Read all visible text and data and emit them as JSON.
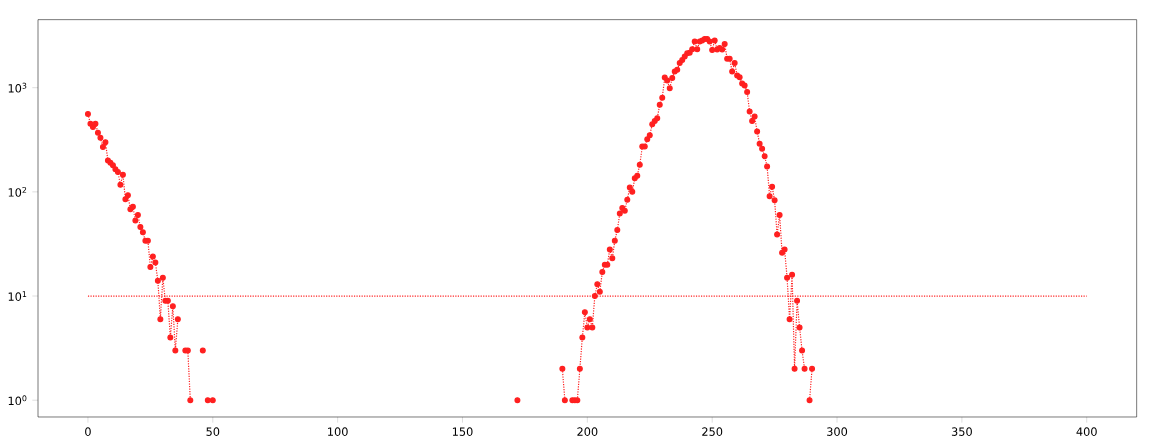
{
  "chart_data": {
    "type": "line",
    "log": "y",
    "xlim": [
      -20,
      420
    ],
    "ylim": [
      0.69,
      4500
    ],
    "xticks": [
      0,
      50,
      100,
      150,
      200,
      250,
      300,
      350,
      400
    ],
    "yticks": [
      {
        "value": 1,
        "label": "10$^{0}$"
      },
      {
        "value": 10,
        "label": "10$^{1}$"
      },
      {
        "value": 100,
        "label": "10$^{2}$"
      },
      {
        "value": 1000,
        "label": "10$^{3}$"
      }
    ],
    "series": [
      {
        "color": "#ff2020",
        "marker": "circle",
        "line_style": "dotted",
        "x": [
          0,
          1,
          2,
          3,
          4,
          5,
          6,
          7,
          8,
          9,
          10,
          11,
          12,
          13,
          14,
          15,
          16,
          17,
          18,
          19,
          20,
          21,
          22,
          23,
          24,
          25,
          26,
          27,
          28,
          29,
          30,
          31,
          32,
          33,
          34,
          35,
          36,
          37,
          38,
          39,
          40,
          41,
          42,
          45,
          46,
          47,
          48,
          49,
          50,
          51,
          171,
          172,
          173,
          189,
          190,
          191,
          192,
          193,
          194,
          195,
          196,
          197,
          198,
          199,
          200,
          201,
          202,
          203,
          204,
          205,
          206,
          207,
          208,
          209,
          210,
          211,
          212,
          213,
          214,
          215,
          216,
          217,
          218,
          219,
          220,
          221,
          222,
          223,
          224,
          225,
          226,
          227,
          228,
          229,
          230,
          231,
          232,
          233,
          234,
          235,
          236,
          237,
          238,
          239,
          240,
          241,
          242,
          243,
          244,
          245,
          246,
          247,
          248,
          249,
          250,
          251,
          252,
          253,
          254,
          255,
          256,
          257,
          258,
          259,
          260,
          261,
          262,
          263,
          264,
          265,
          266,
          267,
          268,
          269,
          270,
          271,
          272,
          273,
          274,
          275,
          276,
          277,
          278,
          279,
          280,
          281,
          282,
          283,
          284,
          285,
          286,
          287,
          288,
          289,
          290
        ],
        "values": [
          560,
          450,
          420,
          450,
          370,
          330,
          270,
          300,
          200,
          190,
          180,
          165,
          155,
          117,
          146,
          85,
          93,
          68,
          72,
          53,
          60,
          46,
          41,
          34,
          34,
          19,
          24,
          21,
          14,
          6,
          15,
          9,
          9,
          4,
          8,
          3,
          6,
          null,
          null,
          3,
          3,
          1,
          null,
          null,
          3,
          null,
          1,
          null,
          1,
          null,
          null,
          1,
          null,
          null,
          2,
          1,
          null,
          null,
          1,
          1,
          1,
          2,
          4,
          7,
          5,
          6,
          5,
          10,
          13,
          11,
          17,
          20,
          20,
          28,
          23,
          34,
          43,
          62,
          70,
          66,
          84,
          110,
          100,
          135,
          143,
          182,
          272,
          272,
          320,
          350,
          445,
          480,
          510,
          685,
          800,
          1250,
          1170,
          990,
          1240,
          1430,
          1490,
          1730,
          1840,
          1990,
          2140,
          2170,
          2340,
          2780,
          2340,
          2780,
          2840,
          2940,
          2940,
          2780,
          2300,
          2840,
          2330,
          2400,
          2330,
          2620,
          1900,
          1900,
          1430,
          1730,
          1310,
          1260,
          1100,
          1050,
          910,
          590,
          480,
          530,
          380,
          290,
          260,
          220,
          175,
          91,
          112,
          83,
          39,
          60,
          26,
          28,
          15,
          6,
          16,
          2,
          9,
          5,
          3,
          2,
          null,
          1,
          2
        ]
      },
      {
        "color": "#ff2020",
        "marker": "none",
        "line_style": "dotted",
        "x": [
          0,
          400
        ],
        "values": [
          10,
          10
        ]
      }
    ]
  }
}
